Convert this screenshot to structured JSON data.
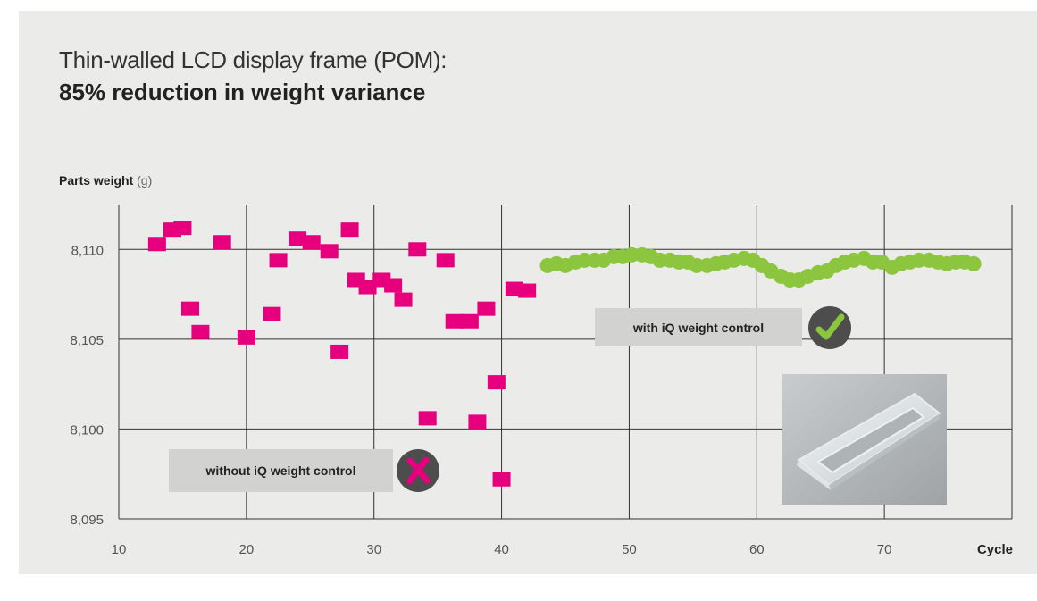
{
  "title_line1": "Thin-walled LCD display frame (POM):",
  "title_line2": "85% reduction in weight variance",
  "y_label_bold": "Parts weight",
  "y_label_unit": "(g)",
  "x_label": "Cycle",
  "notes": {
    "without": "without iQ weight control",
    "with": "with iQ weight control"
  },
  "icons": {
    "cross": "cross-icon",
    "check": "check-icon",
    "photo": "lcd-frame-photo"
  },
  "colors": {
    "without_series": "#e6007e",
    "with_series": "#8cc63f",
    "grid": "#333333",
    "badge": "#4d4d4d"
  },
  "chart_data": {
    "type": "scatter",
    "xlim": [
      10,
      80
    ],
    "ylim": [
      8.095,
      8.1125
    ],
    "x_ticks": [
      {
        "value": 10,
        "label": "10"
      },
      {
        "value": 20,
        "label": "20"
      },
      {
        "value": 30,
        "label": "30"
      },
      {
        "value": 40,
        "label": "40"
      },
      {
        "value": 50,
        "label": "50"
      },
      {
        "value": 60,
        "label": "60"
      },
      {
        "value": 70,
        "label": "70"
      }
    ],
    "y_ticks": [
      {
        "value": 8.095,
        "label": "8,095"
      },
      {
        "value": 8.1,
        "label": "8,100"
      },
      {
        "value": 8.105,
        "label": "8,105"
      },
      {
        "value": 8.11,
        "label": "8,110"
      }
    ],
    "grid": true,
    "series": [
      {
        "marker": "square",
        "color": "#e6007e",
        "points": [
          [
            13.0,
            8.1103
          ],
          [
            14.2,
            8.1111
          ],
          [
            15.0,
            8.1112
          ],
          [
            15.6,
            8.1067
          ],
          [
            16.4,
            8.1054
          ],
          [
            18.1,
            8.1104
          ],
          [
            20.0,
            8.1051
          ],
          [
            22.0,
            8.1064
          ],
          [
            22.5,
            8.1094
          ],
          [
            24.0,
            8.1106
          ],
          [
            25.1,
            8.1104
          ],
          [
            26.5,
            8.1099
          ],
          [
            27.3,
            8.1043
          ],
          [
            28.1,
            8.1111
          ],
          [
            28.6,
            8.1083
          ],
          [
            29.5,
            8.1079
          ],
          [
            30.6,
            8.1083
          ],
          [
            31.5,
            8.108
          ],
          [
            32.3,
            8.1072
          ],
          [
            33.4,
            8.11
          ],
          [
            34.2,
            8.1006
          ],
          [
            35.6,
            8.1094
          ],
          [
            36.3,
            8.106
          ],
          [
            37.5,
            8.106
          ],
          [
            38.1,
            8.1004
          ],
          [
            38.8,
            8.1067
          ],
          [
            39.6,
            8.1026
          ],
          [
            40.0,
            8.0972
          ],
          [
            41.0,
            8.1078
          ],
          [
            42.0,
            8.1077
          ]
        ]
      },
      {
        "marker": "circle",
        "color": "#8cc63f",
        "points": [
          [
            43.6,
            8.1091
          ],
          [
            44.3,
            8.1092
          ],
          [
            45.0,
            8.1091
          ],
          [
            45.8,
            8.1093
          ],
          [
            46.5,
            8.1094
          ],
          [
            47.3,
            8.1094
          ],
          [
            48.0,
            8.1094
          ],
          [
            48.8,
            8.1096
          ],
          [
            49.5,
            8.1096
          ],
          [
            50.2,
            8.1097
          ],
          [
            51.0,
            8.1097
          ],
          [
            51.7,
            8.1096
          ],
          [
            52.4,
            8.1094
          ],
          [
            53.2,
            8.1094
          ],
          [
            53.9,
            8.1093
          ],
          [
            54.6,
            8.1093
          ],
          [
            55.3,
            8.1091
          ],
          [
            56.1,
            8.1091
          ],
          [
            56.8,
            8.1092
          ],
          [
            57.5,
            8.1093
          ],
          [
            58.2,
            8.1094
          ],
          [
            59.0,
            8.1095
          ],
          [
            59.7,
            8.1094
          ],
          [
            60.4,
            8.1091
          ],
          [
            61.1,
            8.1088
          ],
          [
            61.9,
            8.1085
          ],
          [
            62.6,
            8.1083
          ],
          [
            63.3,
            8.1083
          ],
          [
            64.0,
            8.1085
          ],
          [
            64.8,
            8.1087
          ],
          [
            65.5,
            8.1088
          ],
          [
            66.2,
            8.1091
          ],
          [
            66.9,
            8.1093
          ],
          [
            67.6,
            8.1094
          ],
          [
            68.4,
            8.1095
          ],
          [
            69.1,
            8.1093
          ],
          [
            69.8,
            8.1093
          ],
          [
            70.6,
            8.109
          ],
          [
            71.3,
            8.1092
          ],
          [
            72.0,
            8.1093
          ],
          [
            72.7,
            8.1094
          ],
          [
            73.5,
            8.1094
          ],
          [
            74.2,
            8.1093
          ],
          [
            74.9,
            8.1092
          ],
          [
            75.6,
            8.1093
          ],
          [
            76.3,
            8.1093
          ],
          [
            77.0,
            8.1092
          ]
        ]
      }
    ]
  }
}
